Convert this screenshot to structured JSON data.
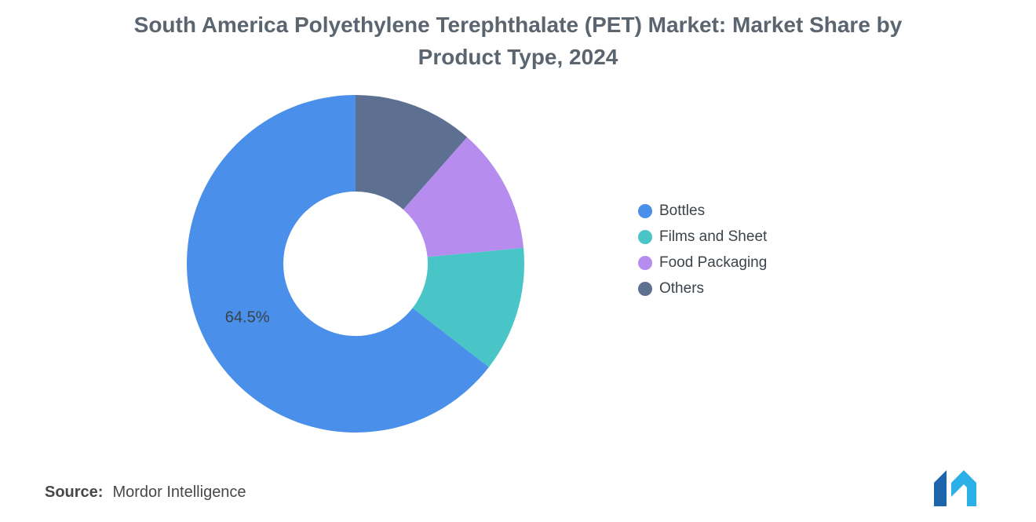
{
  "title": "South America Polyethylene Terephthalate (PET) Market: Market Share by Product Type, 2024",
  "source": {
    "label": "Source:",
    "value": "Mordor Intelligence"
  },
  "logo": {
    "icon": "mordor-intelligence-logo",
    "colors": [
      "#1D64AD",
      "#2BB0E8"
    ]
  },
  "chart_data": {
    "type": "pie",
    "subtype": "donut",
    "title": "South America Polyethylene Terephthalate (PET) Market: Market Share by Product Type, 2024",
    "unit": "%",
    "series": [
      {
        "name": "Bottles",
        "value": 64.5,
        "label": "64.5%",
        "color": "#4A8FE9"
      },
      {
        "name": "Films and Sheet",
        "value": 12.0,
        "label": "",
        "color": "#49C5C8"
      },
      {
        "name": "Food Packaging",
        "value": 12.0,
        "label": "",
        "color": "#B78CEF"
      },
      {
        "name": "Others",
        "value": 11.5,
        "label": "",
        "color": "#5D7092"
      }
    ],
    "start_angle": "top",
    "direction": "counterclockwise",
    "inner_radius_ratio": 0.428,
    "legend_position": "right",
    "background": "#FFFFFF"
  }
}
